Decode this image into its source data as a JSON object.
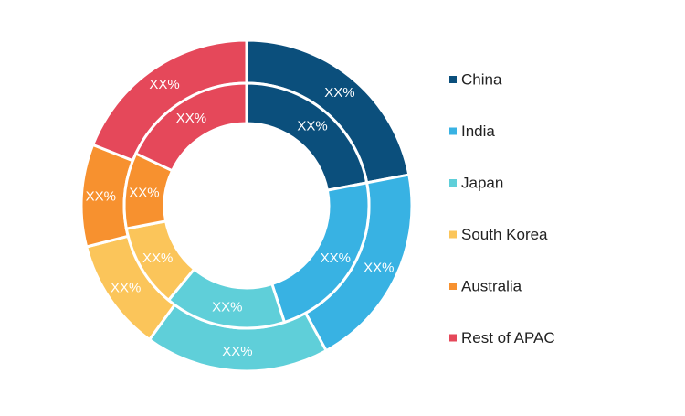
{
  "chart_data": {
    "type": "pie",
    "variant": "nested-donut",
    "categories": [
      "China",
      "India",
      "Japan",
      "South Korea",
      "Australia",
      "Rest of APAC"
    ],
    "colors": [
      "#0b4f7c",
      "#38b2e3",
      "#5fcfd9",
      "#fbc55a",
      "#f7912f",
      "#e5485a"
    ],
    "series": [
      {
        "values": [
          22,
          20,
          18,
          11,
          10,
          19
        ],
        "labels": [
          "XX%",
          "XX%",
          "XX%",
          "XX%",
          "XX%",
          "XX%"
        ]
      },
      {
        "values": [
          22,
          23,
          16,
          11,
          10,
          18
        ],
        "labels": [
          "XX%",
          "XX%",
          "XX%",
          "XX%",
          "XX%",
          "XX%"
        ]
      }
    ],
    "legend": {
      "placement": "right",
      "entries": [
        "China",
        "India",
        "Japan",
        "South Korea",
        "Australia",
        "Rest of APAC"
      ]
    }
  }
}
